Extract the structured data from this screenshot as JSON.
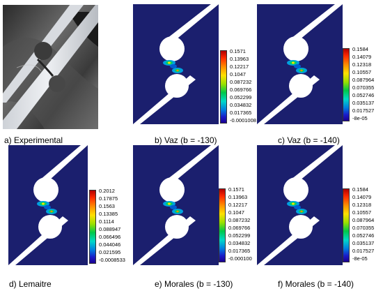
{
  "panels": [
    {
      "caption": "a)   Experimental"
    },
    {
      "caption": "b)   Vaz (b = -130)",
      "legend": [
        "0.1571",
        "0.13963",
        "0.12217",
        "0.1047",
        "0.087232",
        "0.069766",
        "0.052299",
        "0.034832",
        "0.017365",
        "-0.0001008"
      ]
    },
    {
      "caption": "c)   Vaz (b = -140)",
      "legend": [
        "0.1584",
        "0.14079",
        "0.12318",
        "0.10557",
        "0.087964",
        "0.070355",
        "0.052746",
        "0.035137",
        "0.017527",
        "-8e-05"
      ]
    },
    {
      "caption": "d)   Lemaitre",
      "legend": [
        "0.2012",
        "0.17875",
        "0.1563",
        "0.13385",
        "0.1114",
        "0.088947",
        "0.066496",
        "0.044046",
        "0.021595",
        "-0.0008533"
      ]
    },
    {
      "caption": "e)   Morales (b = -130)",
      "legend": [
        "0.1571",
        "0.13963",
        "0.12217",
        "0.1047",
        "0.087232",
        "0.069766",
        "0.052299",
        "0.034832",
        "0.017365",
        "-0.000100"
      ]
    },
    {
      "caption": "f)   Morales (b = -140)",
      "legend": [
        "0.1584",
        "0.14079",
        "0.12318",
        "0.10557",
        "0.087964",
        "0.070355",
        "0.052746",
        "0.035137",
        "0.017527",
        "-8e-05"
      ]
    }
  ],
  "colors": {
    "specimen": "#1b1f6e",
    "hole": "#ffffff"
  }
}
